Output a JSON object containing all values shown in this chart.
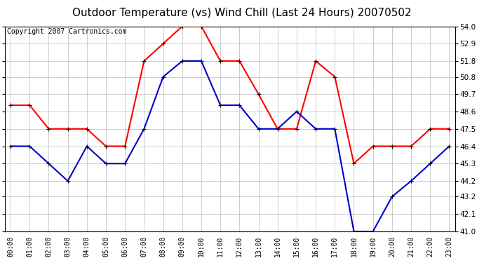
{
  "title": "Outdoor Temperature (vs) Wind Chill (Last 24 Hours) 20070502",
  "copyright": "Copyright 2007 Cartronics.com",
  "hours": [
    "00:00",
    "01:00",
    "02:00",
    "03:00",
    "04:00",
    "05:00",
    "06:00",
    "07:00",
    "08:00",
    "09:00",
    "10:00",
    "11:00",
    "12:00",
    "13:00",
    "14:00",
    "15:00",
    "16:00",
    "17:00",
    "18:00",
    "19:00",
    "20:00",
    "21:00",
    "22:00",
    "23:00"
  ],
  "red_temp": [
    49.0,
    49.0,
    47.5,
    47.5,
    47.5,
    46.4,
    46.4,
    51.8,
    52.9,
    54.0,
    54.0,
    51.8,
    51.8,
    49.7,
    47.5,
    47.5,
    51.8,
    50.8,
    45.3,
    46.4,
    46.4,
    46.4,
    47.5,
    47.5
  ],
  "blue_wc": [
    46.4,
    46.4,
    45.3,
    44.2,
    46.4,
    45.3,
    45.3,
    47.5,
    50.8,
    51.8,
    51.8,
    49.0,
    49.0,
    47.5,
    47.5,
    48.6,
    47.5,
    47.5,
    41.0,
    41.0,
    43.2,
    44.2,
    45.3,
    46.4
  ],
  "red_color": "#ff0000",
  "blue_color": "#0000cc",
  "bg_color": "#ffffff",
  "grid_color": "#aaaaaa",
  "ylim": [
    41.0,
    54.0
  ],
  "yticks": [
    41.0,
    42.1,
    43.2,
    44.2,
    45.3,
    46.4,
    47.5,
    48.6,
    49.7,
    50.8,
    51.8,
    52.9,
    54.0
  ],
  "title_fontsize": 11,
  "copyright_fontsize": 7,
  "marker_size": 5,
  "linewidth": 1.5
}
